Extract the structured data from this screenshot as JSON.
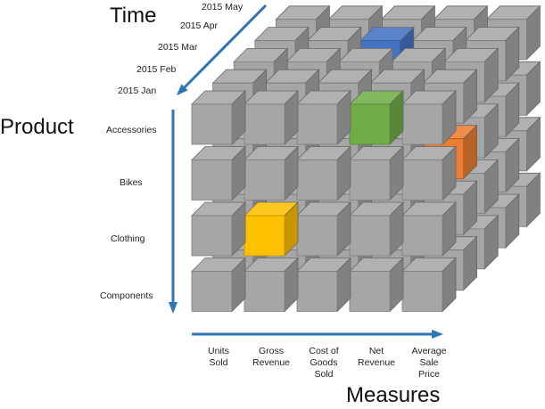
{
  "axes": {
    "time": {
      "title": "Time",
      "labels": [
        "2015 Jan",
        "2015 Feb",
        "2015 Mar",
        "2015 Apr",
        "2015 May"
      ]
    },
    "product": {
      "title": "Product",
      "labels": [
        "Accessories",
        "Bikes",
        "Clothing",
        "Components"
      ]
    },
    "measures": {
      "title": "Measures",
      "labels": [
        "Units\nSold",
        "Gross\nRevenue",
        "Cost of\nGoods\nSold",
        "Net\nRevenue",
        "Average\nSale\nPrice"
      ]
    }
  },
  "colors": {
    "arrow": "#2e75b6",
    "cube": "#a6a6a6"
  },
  "highlighted_cells": [
    {
      "time": "2015 Jan",
      "product": "Accessories",
      "measure": "Net Revenue",
      "color": "#70ad47"
    },
    {
      "time": "2015 Jan",
      "product": "Clothing",
      "measure": "Gross Revenue",
      "color": "#ffc000"
    },
    {
      "time": "2015 Feb",
      "product": "Bikes",
      "measure": "Average Sale Price",
      "color": "#ed7d31"
    },
    {
      "time": "2015 Apr",
      "product": "Accessories",
      "measure": "Cost of Goods Sold",
      "color": "#4472c4"
    }
  ]
}
